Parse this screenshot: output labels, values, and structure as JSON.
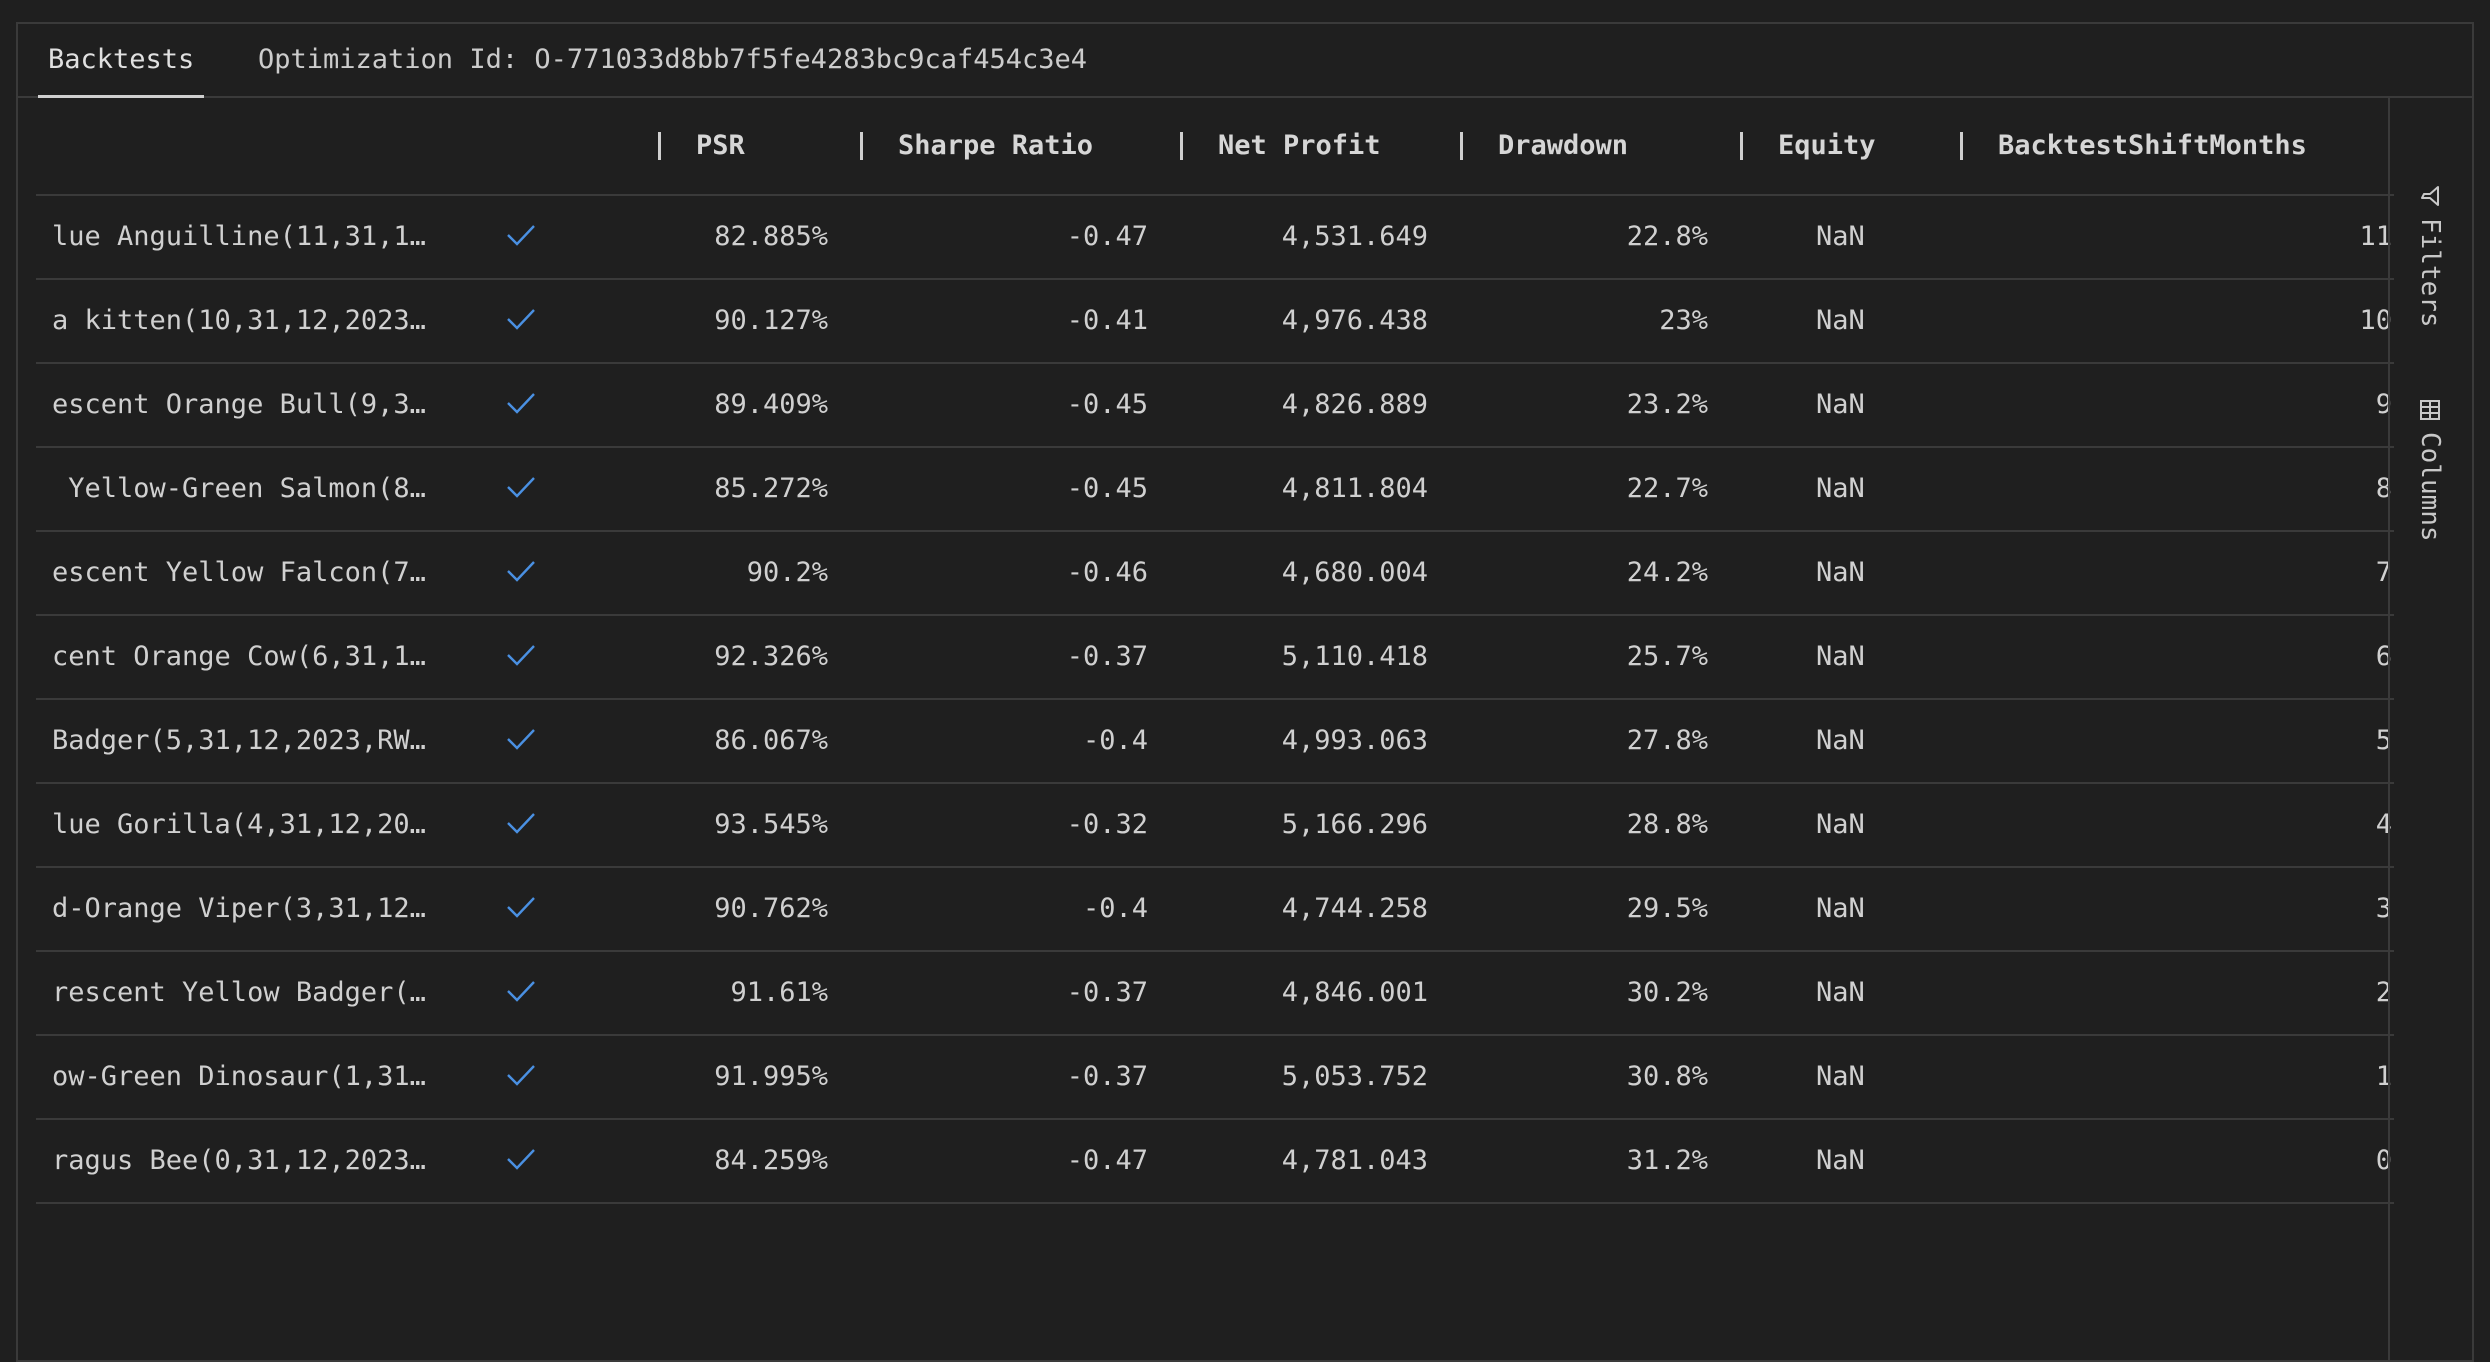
{
  "tabs": {
    "backtests": "Backtests",
    "optimization": "Optimization Id: O-771033d8bb7f5fe4283bc9caf454c3e4"
  },
  "columns": {
    "psr": "PSR",
    "sharpe": "Sharpe Ratio",
    "net_profit": "Net Profit",
    "drawdown": "Drawdown",
    "equity": "Equity",
    "shift": "BacktestShiftMonths"
  },
  "sidebar": {
    "filters": "Filters",
    "columns": "Columns"
  },
  "colors": {
    "check": "#4a90e2"
  },
  "rows": [
    {
      "name": "lue Anguilline(11,31,1…",
      "psr": "82.885%",
      "sharpe": "-0.47",
      "net": "4,531.649",
      "dd": "22.8%",
      "eq": "NaN",
      "shift": "11"
    },
    {
      "name": "a kitten(10,31,12,2023…",
      "psr": "90.127%",
      "sharpe": "-0.41",
      "net": "4,976.438",
      "dd": "23%",
      "eq": "NaN",
      "shift": "10"
    },
    {
      "name": "escent Orange Bull(9,3…",
      "psr": "89.409%",
      "sharpe": "-0.45",
      "net": "4,826.889",
      "dd": "23.2%",
      "eq": "NaN",
      "shift": "9"
    },
    {
      "name": " Yellow-Green Salmon(8…",
      "psr": "85.272%",
      "sharpe": "-0.45",
      "net": "4,811.804",
      "dd": "22.7%",
      "eq": "NaN",
      "shift": "8"
    },
    {
      "name": "escent Yellow Falcon(7…",
      "psr": "90.2%",
      "sharpe": "-0.46",
      "net": "4,680.004",
      "dd": "24.2%",
      "eq": "NaN",
      "shift": "7"
    },
    {
      "name": "cent Orange Cow(6,31,1…",
      "psr": "92.326%",
      "sharpe": "-0.37",
      "net": "5,110.418",
      "dd": "25.7%",
      "eq": "NaN",
      "shift": "6"
    },
    {
      "name": "Badger(5,31,12,2023,RW…",
      "psr": "86.067%",
      "sharpe": "-0.4",
      "net": "4,993.063",
      "dd": "27.8%",
      "eq": "NaN",
      "shift": "5"
    },
    {
      "name": "lue Gorilla(4,31,12,20…",
      "psr": "93.545%",
      "sharpe": "-0.32",
      "net": "5,166.296",
      "dd": "28.8%",
      "eq": "NaN",
      "shift": "4"
    },
    {
      "name": "d-Orange Viper(3,31,12…",
      "psr": "90.762%",
      "sharpe": "-0.4",
      "net": "4,744.258",
      "dd": "29.5%",
      "eq": "NaN",
      "shift": "3"
    },
    {
      "name": "rescent Yellow Badger(…",
      "psr": "91.61%",
      "sharpe": "-0.37",
      "net": "4,846.001",
      "dd": "30.2%",
      "eq": "NaN",
      "shift": "2"
    },
    {
      "name": "ow-Green Dinosaur(1,31…",
      "psr": "91.995%",
      "sharpe": "-0.37",
      "net": "5,053.752",
      "dd": "30.8%",
      "eq": "NaN",
      "shift": "1"
    },
    {
      "name": "ragus Bee(0,31,12,2023…",
      "psr": "84.259%",
      "sharpe": "-0.47",
      "net": "4,781.043",
      "dd": "31.2%",
      "eq": "NaN",
      "shift": "0"
    }
  ]
}
